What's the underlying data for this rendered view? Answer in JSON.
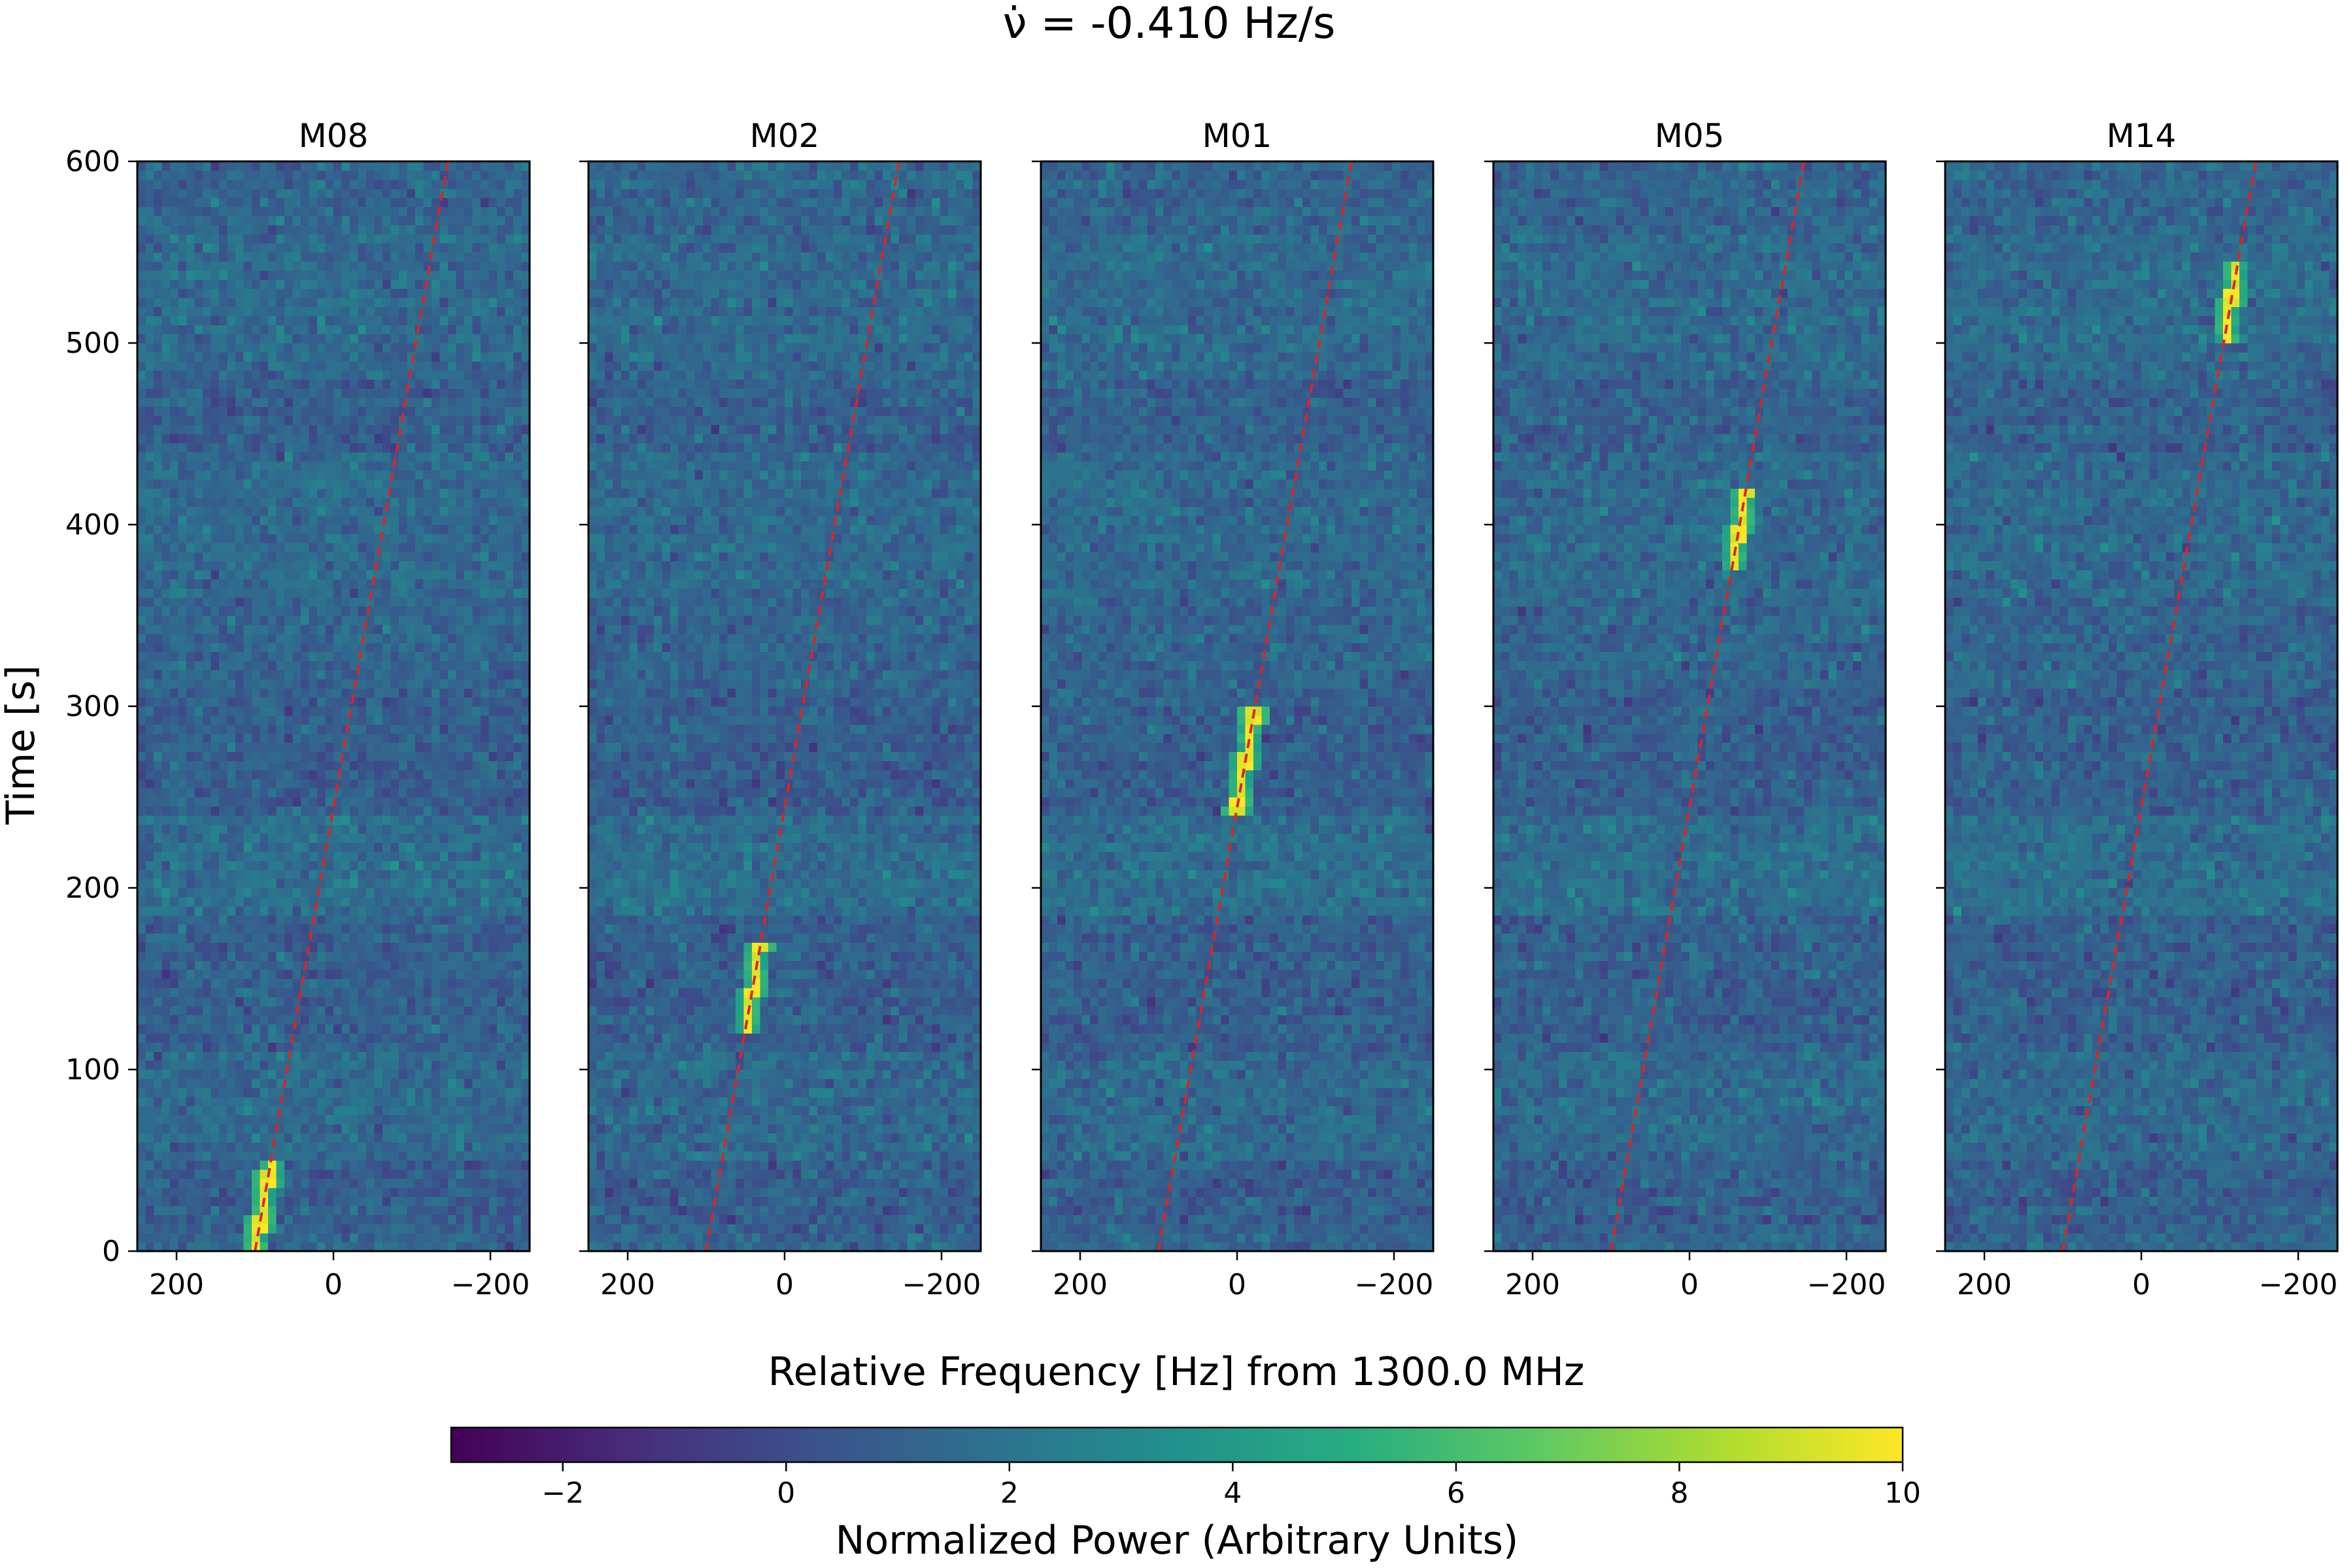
{
  "chart_data": {
    "type": "heatmap",
    "title": "ν̇ = -0.410 Hz/s",
    "xlabel": "Relative Frequency [Hz] from 1300.0 MHz",
    "ylabel": "Time [s]",
    "xlim": [
      250,
      -250
    ],
    "ylim": [
      0,
      600
    ],
    "x_ticks": [
      200,
      0,
      -200
    ],
    "x_tick_labels": [
      "200",
      "0",
      "−200"
    ],
    "y_ticks": [
      0,
      100,
      200,
      300,
      400,
      500,
      600
    ],
    "drift_rate_hz_per_s": -0.41,
    "drift_line": {
      "style": "dashed",
      "color": "#d62728",
      "freq_at_t0": 100,
      "freq_at_t600": -146
    },
    "panels": [
      {
        "name": "M08",
        "signal_time_range": [
          0,
          50
        ]
      },
      {
        "name": "M02",
        "signal_time_range": [
          120,
          170
        ]
      },
      {
        "name": "M01",
        "signal_time_range": [
          240,
          300
        ]
      },
      {
        "name": "M05",
        "signal_time_range": [
          375,
          420
        ]
      },
      {
        "name": "M14",
        "signal_time_range": [
          500,
          545
        ]
      }
    ],
    "colorbar": {
      "label": "Normalized Power (Arbitrary Units)",
      "colormap": "viridis",
      "range": [
        -3,
        10
      ],
      "ticks": [
        -2,
        0,
        2,
        4,
        6,
        8,
        10
      ],
      "tick_labels": [
        "−2",
        "0",
        "2",
        "4",
        "6",
        "8",
        "10"
      ]
    },
    "grid": false
  }
}
